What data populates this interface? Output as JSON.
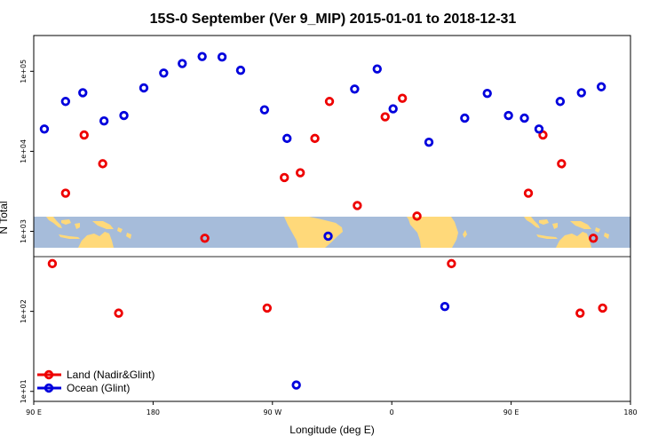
{
  "chart_data": {
    "type": "scatter",
    "title": "15S-0 September (Ver 9_MIP)   2015-01-01 to 2018-12-31",
    "xlabel": "Longitude (deg E)",
    "ylabel": "N Total",
    "x_axis_domain_deg": [
      90,
      450
    ],
    "x_ticks": [
      {
        "value": 90,
        "label": "90 E"
      },
      {
        "value": 180,
        "label": "180"
      },
      {
        "value": 270,
        "label": "90 W"
      },
      {
        "value": 360,
        "label": "0"
      },
      {
        "value": 450,
        "label": "90 E"
      },
      {
        "value": 540,
        "label": "180"
      }
    ],
    "x_range": [
      90,
      540
    ],
    "y_scale": "log",
    "y_ticks": [
      {
        "value": 10,
        "label": "1e+01"
      },
      {
        "value": 100,
        "label": "1e+02"
      },
      {
        "value": 1000,
        "label": "1e+03"
      },
      {
        "value": 10000,
        "label": "1e+04"
      },
      {
        "value": 100000,
        "label": "1e+05"
      }
    ],
    "y_range": [
      7.5,
      280000
    ],
    "map_strip": {
      "band": "15S-0",
      "land_color": "#FFD97A",
      "ocean_color": "#A6BCDA",
      "divider_color": "#555555"
    },
    "colors": {
      "land": "#EE0000",
      "ocean": "#0000DD"
    },
    "series": [
      {
        "name": "Land (Nadir&Glint)",
        "x": [
          104,
          114,
          128,
          142,
          154,
          219,
          266,
          279,
          291,
          302,
          313,
          334,
          355,
          368,
          379,
          405,
          463,
          474,
          488,
          502,
          512,
          519
        ],
        "y": [
          395,
          3000,
          16000,
          7000,
          95,
          820,
          110,
          4700,
          5400,
          14500,
          42000,
          2100,
          27000,
          46000,
          1550,
          395,
          3000,
          16000,
          7000,
          95,
          820,
          110
        ]
      },
      {
        "name": "Ocean (Glint)",
        "x": [
          98,
          114,
          127,
          143,
          158,
          173,
          188,
          202,
          217,
          232,
          246,
          264,
          281,
          288,
          312,
          332,
          349,
          361,
          388,
          400,
          415,
          432,
          448,
          460,
          471,
          487,
          503,
          518
        ],
        "y": [
          19000,
          42000,
          54000,
          24000,
          28000,
          62000,
          95000,
          125000,
          153000,
          151000,
          103000,
          33000,
          14500,
          12,
          870,
          60000,
          107000,
          34000,
          13000,
          115,
          26000,
          53000,
          28000,
          26000,
          19000,
          42000,
          54000,
          64000
        ]
      }
    ],
    "legend": {
      "position": "bottom-left",
      "entries": [
        "Land (Nadir&Glint)",
        "Ocean (Glint)"
      ]
    }
  }
}
